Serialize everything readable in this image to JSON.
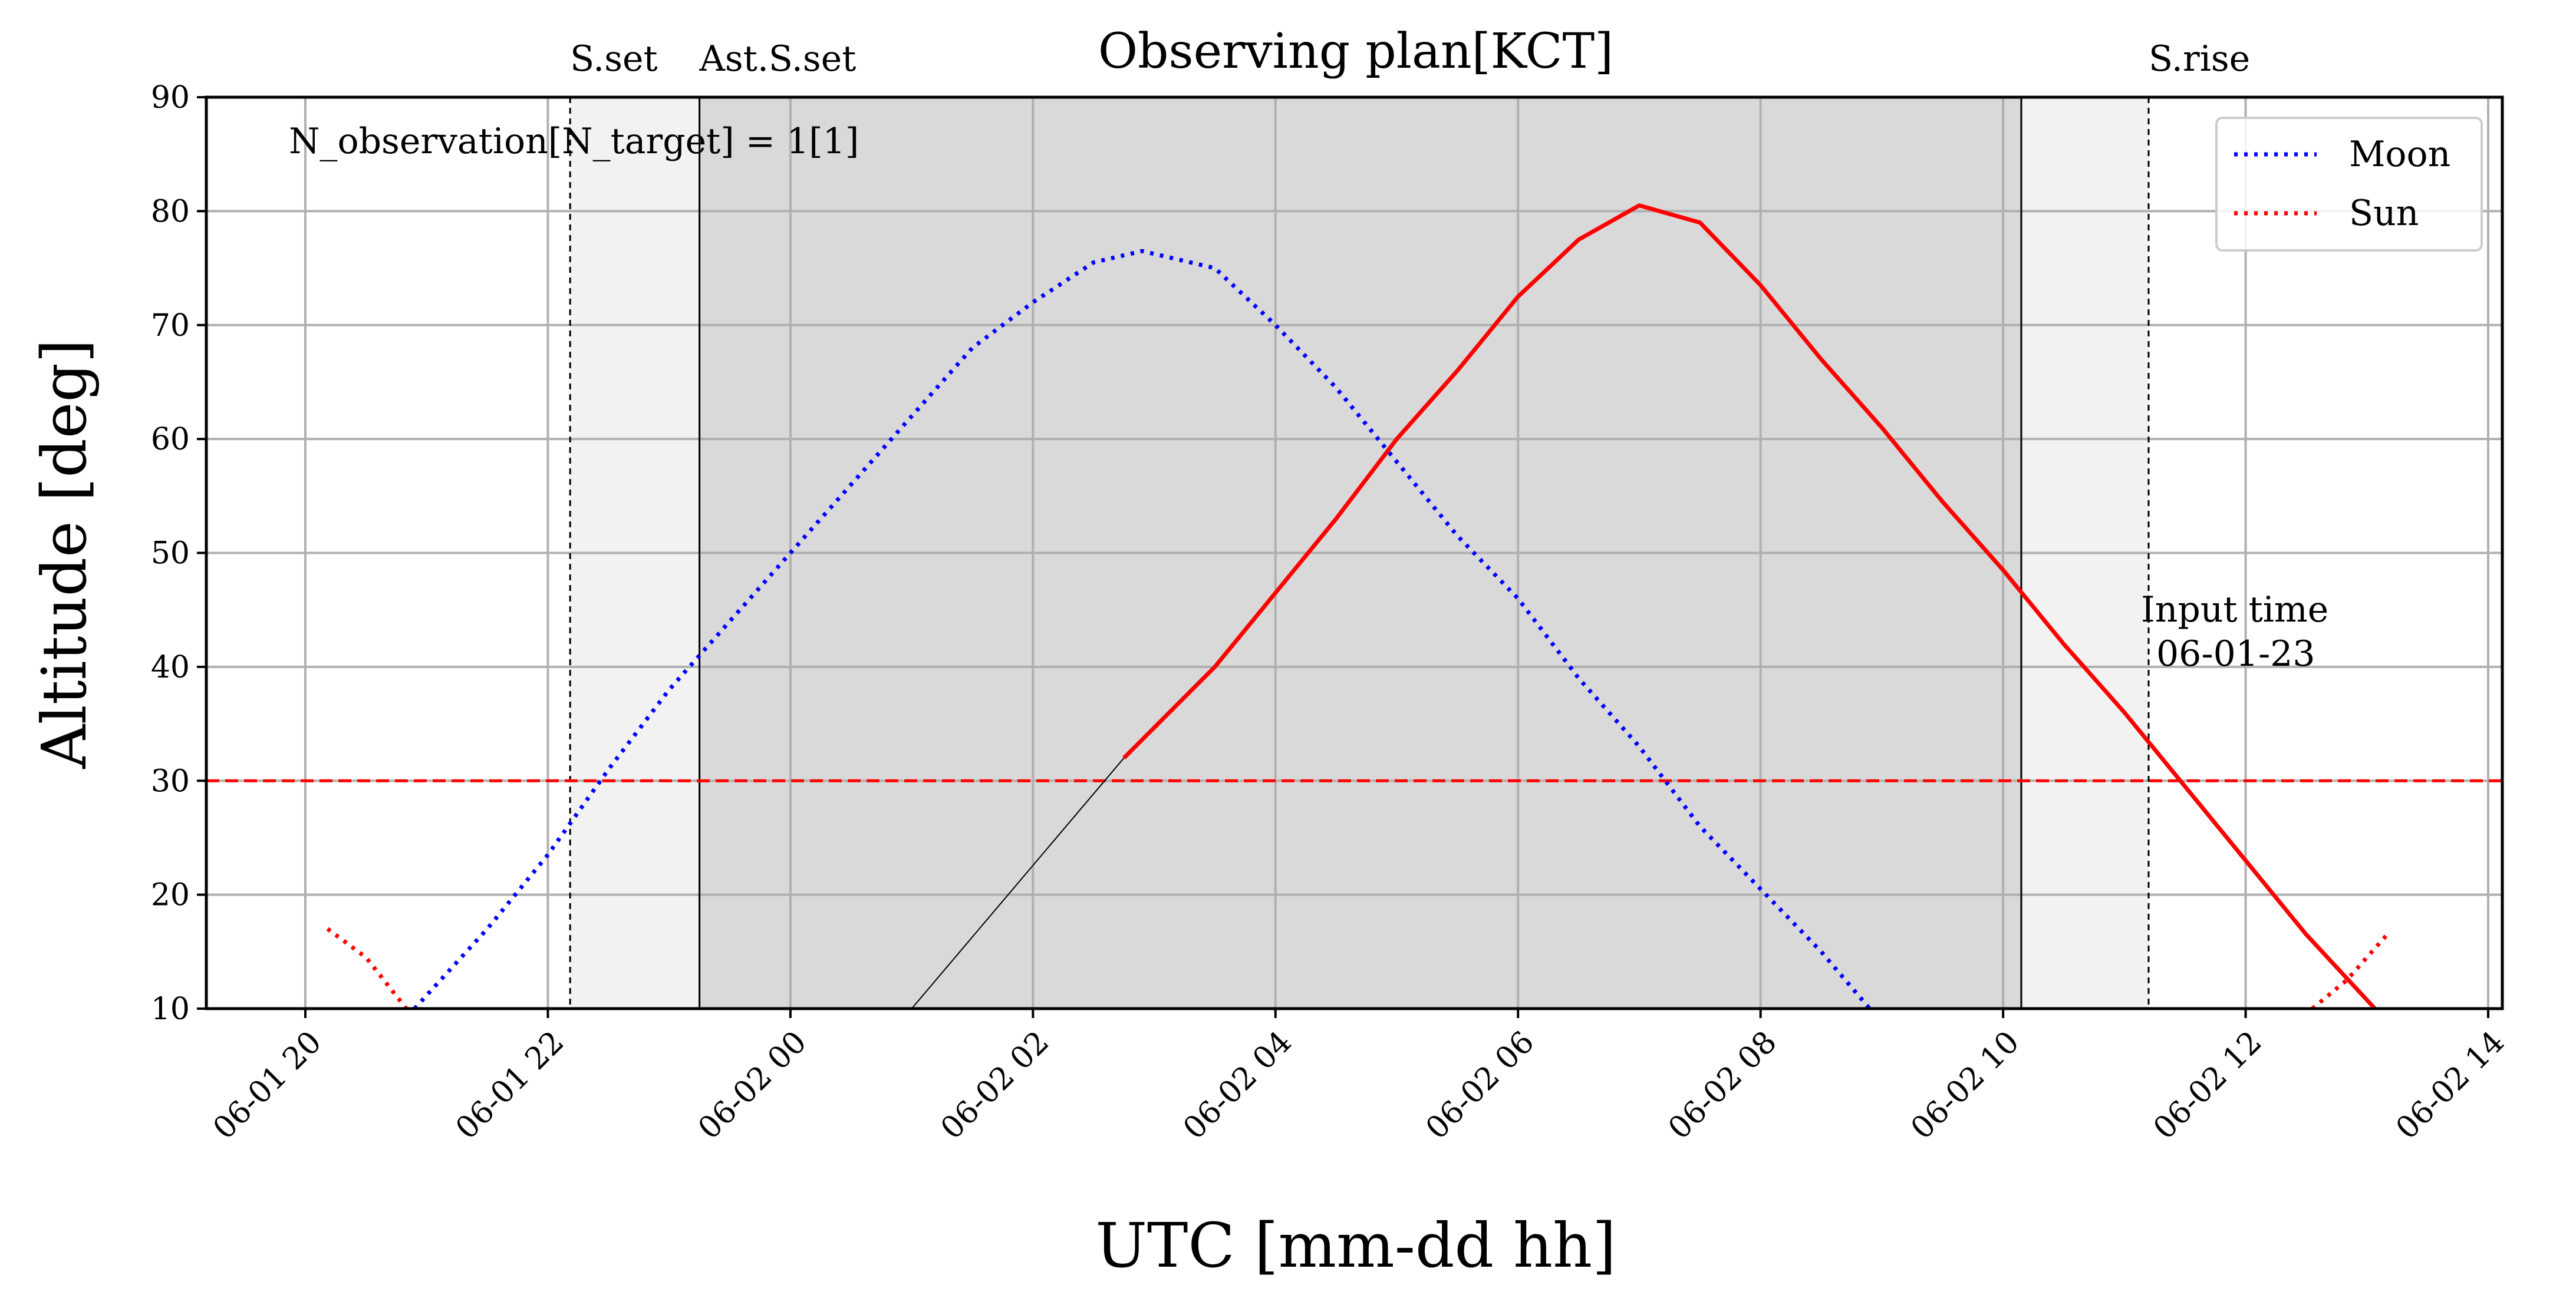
{
  "chart_data": {
    "type": "line",
    "title": "Observing plan[KCT]",
    "xlabel": "UTC [mm-dd hh]",
    "ylabel": "Altitude [deg]",
    "xlim": [
      "06-01 19:11",
      "06-02 14:07"
    ],
    "ylim": [
      10,
      90
    ],
    "grid": true,
    "legend_position": "top-right",
    "x_ticks": [
      "06-01 20",
      "06-01 22",
      "06-02 00",
      "06-02 02",
      "06-02 04",
      "06-02 06",
      "06-02 08",
      "06-02 10",
      "06-02 12",
      "06-02 14"
    ],
    "y_ticks": [
      10,
      20,
      30,
      40,
      50,
      60,
      70,
      80,
      90
    ],
    "altitude_limit": 30,
    "annotations": {
      "observations": "N_observation[N_target] = 1[1]",
      "input_time_line1": "Input time",
      "input_time_line2": "06-01-23"
    },
    "events": [
      {
        "label": "S.set",
        "time": "06-01 22:11",
        "style": "dashed"
      },
      {
        "label": "Ast.S.set",
        "time": "06-01 23:15",
        "style": "solid"
      },
      {
        "label": "",
        "time": "06-02 10:09",
        "style": "solid"
      },
      {
        "label": "S.rise",
        "time": "06-02 11:12",
        "style": "dashed"
      }
    ],
    "shaded_regions": [
      {
        "from": "06-01 22:11",
        "to": "06-02 11:12",
        "color": "#f2f2f2"
      },
      {
        "from": "06-01 23:15",
        "to": "06-02 10:09",
        "color": "#d9d9d9"
      }
    ],
    "series": [
      {
        "name": "Moon",
        "style": "dotted",
        "color": "#0000ff",
        "points": [
          [
            "06-01 20:54",
            10
          ],
          [
            "06-01 21:30",
            17
          ],
          [
            "06-01 22:00",
            23.5
          ],
          [
            "06-01 22:30",
            31
          ],
          [
            "06-01 23:00",
            38
          ],
          [
            "06-01 23:30",
            44
          ],
          [
            "06-02 00:00",
            50
          ],
          [
            "06-02 00:30",
            56
          ],
          [
            "06-02 01:00",
            62
          ],
          [
            "06-02 01:30",
            68
          ],
          [
            "06-02 02:00",
            72
          ],
          [
            "06-02 02:30",
            75.5
          ],
          [
            "06-02 02:54",
            76.5
          ],
          [
            "06-02 03:30",
            75
          ],
          [
            "06-02 04:00",
            70
          ],
          [
            "06-02 04:30",
            64.5
          ],
          [
            "06-02 05:00",
            58
          ],
          [
            "06-02 05:30",
            51.5
          ],
          [
            "06-02 06:00",
            46
          ],
          [
            "06-02 06:30",
            39
          ],
          [
            "06-02 07:00",
            33
          ],
          [
            "06-02 07:30",
            26
          ],
          [
            "06-02 08:00",
            20.5
          ],
          [
            "06-02 08:30",
            15
          ],
          [
            "06-02 08:54",
            10
          ]
        ]
      },
      {
        "name": "Sun",
        "style": "dotted",
        "color": "#ff0000",
        "segments": [
          [
            [
              "06-01 20:11",
              17
            ],
            [
              "06-01 20:30",
              14.5
            ],
            [
              "06-01 20:50",
              10
            ]
          ],
          [
            [
              "06-02 12:33",
              10
            ],
            [
              "06-02 12:50",
              12.5
            ],
            [
              "06-02 13:10",
              16.5
            ]
          ]
        ]
      },
      {
        "style": "solid",
        "color": "#ff0000",
        "points": [
          [
            "06-02 02:45",
            32
          ],
          [
            "06-02 03:30",
            40
          ],
          [
            "06-02 04:00",
            46.5
          ],
          [
            "06-02 04:30",
            53
          ],
          [
            "06-02 05:00",
            60
          ],
          [
            "06-02 05:30",
            66
          ],
          [
            "06-02 06:00",
            72.5
          ],
          [
            "06-02 06:30",
            77.5
          ],
          [
            "06-02 07:00",
            80.5
          ],
          [
            "06-02 07:30",
            79
          ],
          [
            "06-02 08:00",
            73.5
          ],
          [
            "06-02 08:30",
            67
          ],
          [
            "06-02 09:00",
            61
          ],
          [
            "06-02 09:30",
            54.5
          ],
          [
            "06-02 10:00",
            48.5
          ],
          [
            "06-02 10:30",
            42
          ],
          [
            "06-02 11:00",
            36
          ],
          [
            "06-02 11:30",
            29.5
          ],
          [
            "06-02 12:00",
            23
          ],
          [
            "06-02 12:30",
            16.5
          ],
          [
            "06-02 13:04",
            10
          ]
        ]
      },
      {
        "style": "thin-solid",
        "color": "#000000",
        "points": [
          [
            "06-02 01:00",
            10
          ],
          [
            "06-02 02:45",
            32
          ]
        ]
      }
    ]
  }
}
